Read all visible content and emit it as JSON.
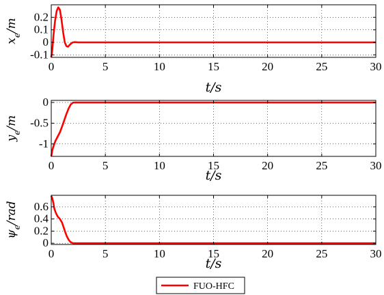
{
  "chart_data": [
    {
      "type": "line",
      "ylabel": "x_e/m",
      "xlabel": "t/s",
      "xlim": [
        0,
        30
      ],
      "ylim": [
        -0.12,
        0.3
      ],
      "xticks": [
        "0",
        "5",
        "10",
        "15",
        "20",
        "25",
        "30"
      ],
      "yticks": [
        "0.2",
        "0.1",
        "0",
        "-0.1"
      ],
      "yticks_values": [
        0.2,
        0.1,
        0,
        -0.1
      ],
      "grid": true,
      "series": [
        {
          "name": "FUO-HFC",
          "color": "#ff0000",
          "x": [
            0,
            0.1,
            0.2,
            0.35,
            0.5,
            0.65,
            0.8,
            0.95,
            1.1,
            1.25,
            1.4,
            1.55,
            1.7,
            1.85,
            2.0,
            2.2,
            2.5,
            3,
            5,
            10,
            15,
            20,
            25,
            30
          ],
          "y": [
            -0.12,
            -0.06,
            0.05,
            0.17,
            0.25,
            0.28,
            0.26,
            0.18,
            0.08,
            0.0,
            -0.03,
            -0.035,
            -0.02,
            -0.008,
            0.0,
            0.002,
            0.0,
            0,
            0,
            0,
            0,
            0,
            0,
            0
          ]
        }
      ]
    },
    {
      "type": "line",
      "ylabel": "y_e/m",
      "xlabel": "t/s",
      "xlim": [
        0,
        30
      ],
      "ylim": [
        -1.3,
        0.05
      ],
      "xticks": [
        "0",
        "5",
        "10",
        "15",
        "20",
        "25",
        "30"
      ],
      "yticks": [
        "0",
        "-0.5",
        "-1"
      ],
      "yticks_values": [
        0,
        -0.5,
        -1
      ],
      "grid": true,
      "series": [
        {
          "name": "FUO-HFC",
          "color": "#ff0000",
          "x": [
            0,
            0.1,
            0.25,
            0.4,
            0.6,
            0.8,
            1.0,
            1.2,
            1.4,
            1.6,
            1.8,
            2.0,
            2.2,
            2.5,
            3,
            5,
            10,
            15,
            20,
            25,
            30
          ],
          "y": [
            -1.3,
            -1.15,
            -1.02,
            -0.92,
            -0.82,
            -0.72,
            -0.58,
            -0.43,
            -0.28,
            -0.15,
            -0.05,
            -0.005,
            0.0,
            0.0,
            0,
            0,
            0,
            0,
            0,
            0,
            0
          ]
        }
      ]
    },
    {
      "type": "line",
      "ylabel": "ψ_e/rad",
      "xlabel": "t/s",
      "xlim": [
        0,
        30
      ],
      "ylim": [
        -0.02,
        0.79
      ],
      "xticks": [
        "0",
        "5",
        "10",
        "15",
        "20",
        "25",
        "30"
      ],
      "yticks": [
        "0.6",
        "0.4",
        "0.2",
        "0"
      ],
      "yticks_values": [
        0.6,
        0.4,
        0.2,
        0
      ],
      "grid": true,
      "series": [
        {
          "name": "FUO-HFC",
          "color": "#ff0000",
          "x": [
            0,
            0.1,
            0.2,
            0.3,
            0.45,
            0.6,
            0.8,
            1.0,
            1.15,
            1.3,
            1.45,
            1.6,
            1.75,
            1.9,
            2.05,
            2.2,
            2.5,
            3,
            5,
            10,
            15,
            20,
            25,
            30
          ],
          "y": [
            0.78,
            0.74,
            0.66,
            0.56,
            0.49,
            0.44,
            0.4,
            0.34,
            0.26,
            0.18,
            0.11,
            0.06,
            0.025,
            0.008,
            0.0,
            0.0,
            0.0,
            0,
            0,
            0,
            0,
            0,
            0,
            0
          ]
        }
      ]
    }
  ],
  "legend": {
    "label": "FUO-HFC",
    "color": "#ff0000"
  }
}
